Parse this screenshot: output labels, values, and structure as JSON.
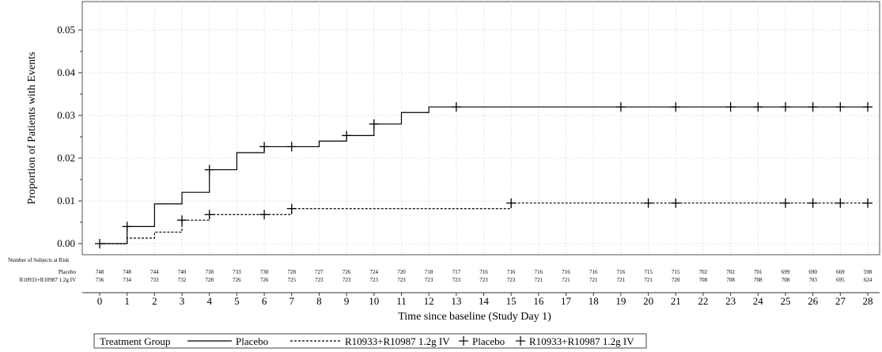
{
  "chart_data": {
    "type": "line",
    "ylabel": "Proportion of Patients with Events",
    "xlabel": "Time since baseline (Study Day 1)",
    "xlim": [
      0,
      28
    ],
    "ylim": [
      0.0,
      0.055
    ],
    "x_ticks": [
      0,
      1,
      2,
      3,
      4,
      5,
      6,
      7,
      8,
      9,
      10,
      11,
      12,
      13,
      14,
      15,
      16,
      17,
      18,
      19,
      20,
      21,
      22,
      23,
      24,
      25,
      26,
      27,
      28
    ],
    "y_ticks": [
      "0.00",
      "0.01",
      "0.02",
      "0.03",
      "0.04",
      "0.05"
    ],
    "y_tick_values": [
      0.0,
      0.01,
      0.02,
      0.03,
      0.04,
      0.05
    ],
    "grid": true,
    "series": [
      {
        "name": "Placebo",
        "line_style": "solid",
        "steps": [
          [
            0,
            0
          ],
          [
            1,
            0.004
          ],
          [
            2,
            0.0093
          ],
          [
            3,
            0.012
          ],
          [
            4,
            0.0173
          ],
          [
            5,
            0.0213
          ],
          [
            6,
            0.0227
          ],
          [
            8,
            0.024
          ],
          [
            9,
            0.0253
          ],
          [
            10,
            0.028
          ],
          [
            11,
            0.0307
          ],
          [
            12,
            0.032
          ]
        ],
        "censor_x": [
          0,
          1,
          4,
          6,
          7,
          9,
          10,
          13,
          19,
          21,
          23,
          24,
          25,
          26,
          27,
          28
        ]
      },
      {
        "name": "R10933+R10987 1.2g IV",
        "line_style": "dashed",
        "steps": [
          [
            0,
            0
          ],
          [
            1,
            0.0013
          ],
          [
            2,
            0.0027
          ],
          [
            3,
            0.0055
          ],
          [
            4,
            0.0068
          ],
          [
            7,
            0.0082
          ],
          [
            15,
            0.0095
          ]
        ],
        "censor_x": [
          3,
          4,
          6,
          7,
          15,
          20,
          21,
          25,
          26,
          27,
          28
        ]
      }
    ],
    "risk_table": {
      "title": "Number of Subjects at Risk",
      "rows": [
        {
          "label": "Placebo",
          "values": [
            "748",
            "748",
            "744",
            "740",
            "738",
            "733",
            "730",
            "728",
            "727",
            "726",
            "724",
            "720",
            "718",
            "717",
            "716",
            "716",
            "716",
            "716",
            "716",
            "716",
            "715",
            "715",
            "702",
            "702",
            "701",
            "699",
            "690",
            "669",
            "598"
          ]
        },
        {
          "label": "R10933+R10987 1.2g IV",
          "values": [
            "736",
            "734",
            "733",
            "732",
            "728",
            "726",
            "726",
            "725",
            "723",
            "723",
            "723",
            "723",
            "723",
            "723",
            "723",
            "723",
            "721",
            "721",
            "721",
            "721",
            "721",
            "720",
            "708",
            "708",
            "708",
            "708",
            "703",
            "695",
            "624"
          ]
        }
      ]
    },
    "legend": {
      "position": "bottom",
      "title": "Treatment Group",
      "entries": [
        {
          "label": "Placebo",
          "kind": "solid-line"
        },
        {
          "label": "R10933+R10987 1.2g IV",
          "kind": "dashed-line"
        },
        {
          "label": "Placebo",
          "kind": "plus-marker"
        },
        {
          "label": "R10933+R10987 1.2g IV",
          "kind": "plus-marker"
        }
      ]
    }
  }
}
